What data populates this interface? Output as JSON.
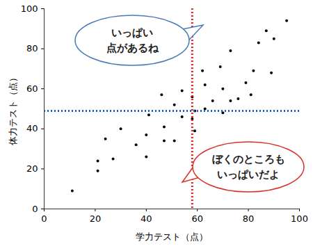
{
  "chart_data": {
    "type": "scatter",
    "x_label": "学力テスト（点）",
    "y_label": "体力テスト（点）",
    "x": [
      11,
      21,
      21,
      24,
      27,
      30,
      36,
      40,
      41,
      40,
      46,
      47,
      47,
      51,
      51,
      54,
      54,
      58,
      58,
      59,
      59,
      62,
      63,
      63,
      66,
      69,
      70,
      70,
      73,
      73,
      76,
      79,
      82,
      81,
      84,
      87,
      89,
      90,
      95
    ],
    "y": [
      9,
      24,
      19,
      35,
      25,
      40,
      32,
      37,
      47,
      26,
      57,
      41,
      34,
      52,
      34,
      59,
      46,
      56,
      45,
      39,
      49,
      69,
      62,
      50,
      54,
      71,
      60,
      48,
      79,
      54,
      55,
      63,
      69,
      57,
      83,
      89,
      68,
      85,
      94
    ],
    "color": "#000000",
    "xlim": [
      0,
      100
    ],
    "ylim": [
      0,
      100
    ],
    "xticks": [
      0,
      20,
      40,
      60,
      80,
      100
    ],
    "yticks": [
      0,
      20,
      40,
      60,
      80,
      100
    ],
    "grid": false,
    "reference_lines": [
      {
        "axis": "x",
        "value": 58,
        "color": "#e8201a",
        "line_style": "dotted"
      },
      {
        "axis": "y",
        "value": 49,
        "color": "#1f5fbf",
        "line_style": "dotted"
      }
    ],
    "annotations": [
      {
        "text": [
          "いっぱい",
          "点があるね"
        ],
        "color": "#4a7ab5"
      },
      {
        "text": [
          "ぼくのところも",
          "いっぱいだよ"
        ],
        "color": "#d9302a"
      }
    ]
  }
}
